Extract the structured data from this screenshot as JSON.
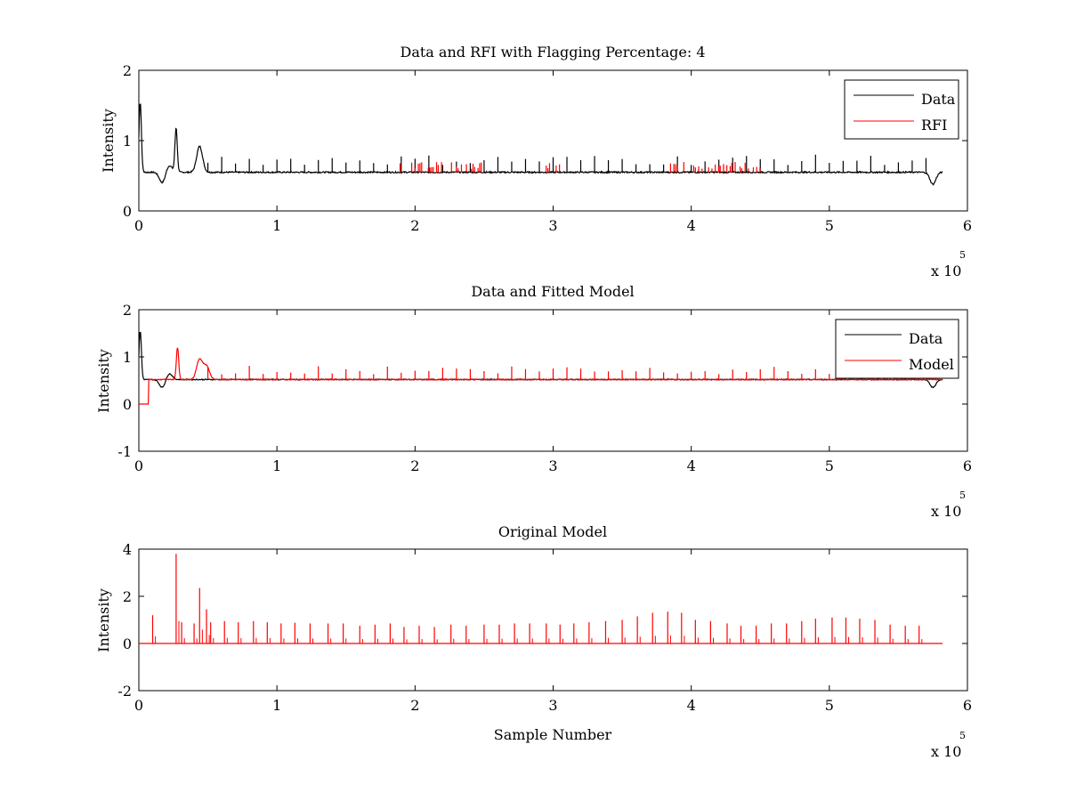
{
  "chart_data": [
    {
      "type": "line",
      "title": "Data and RFI with Flagging Percentage: 4",
      "xlabel": "",
      "ylabel": "Intensity",
      "xlim": [
        0,
        6
      ],
      "ylim": [
        0,
        2
      ],
      "x_ticks": [
        "0",
        "1",
        "2",
        "3",
        "4",
        "5",
        "6"
      ],
      "y_ticks": [
        "0",
        "1",
        "2"
      ],
      "x_multiplier": "x 10",
      "x_exponent": "5",
      "legend": {
        "position": "top-right",
        "entries": [
          {
            "name": "Data",
            "color": "#000000"
          },
          {
            "name": "RFI",
            "color": "#ff0000"
          }
        ]
      },
      "series": [
        {
          "name": "Data",
          "color": "#000000",
          "baseline": 0.55,
          "x_end": 5.82,
          "features": [
            {
              "x": 0.01,
              "y": 1.55
            },
            {
              "x": 0.17,
              "y": 0.4
            },
            {
              "x": 0.22,
              "y": 0.65
            },
            {
              "x": 0.27,
              "y": 1.18
            },
            {
              "x": 0.44,
              "y": 0.92
            },
            {
              "x": 5.75,
              "y": 0.38
            }
          ],
          "spike_spacing": 0.1,
          "spike_height": 0.7
        },
        {
          "name": "RFI",
          "color": "#ff0000",
          "segments": [
            [
              1.88,
              2.5
            ],
            [
              2.95,
              3.05
            ],
            [
              3.85,
              4.5
            ]
          ],
          "level": 0.6
        }
      ]
    },
    {
      "type": "line",
      "title": "Data and Fitted Model",
      "xlabel": "",
      "ylabel": "Intensity",
      "xlim": [
        0,
        6
      ],
      "ylim": [
        -1,
        2
      ],
      "x_ticks": [
        "0",
        "1",
        "2",
        "3",
        "4",
        "5",
        "6"
      ],
      "y_ticks": [
        "-1",
        "0",
        "1",
        "2"
      ],
      "x_multiplier": "x 10",
      "x_exponent": "5",
      "legend": {
        "position": "top-right",
        "entries": [
          {
            "name": "Data",
            "color": "#000000"
          },
          {
            "name": "Model",
            "color": "#ff0000"
          }
        ]
      },
      "series": [
        {
          "name": "Data",
          "color": "#000000",
          "baseline": 0.52,
          "x_end": 5.82,
          "features": [
            {
              "x": 0.01,
              "y": 1.55
            },
            {
              "x": 0.17,
              "y": 0.35
            },
            {
              "x": 0.22,
              "y": 0.65
            },
            {
              "x": 5.75,
              "y": 0.35
            }
          ]
        },
        {
          "name": "Model",
          "color": "#ff0000",
          "baseline": 0.52,
          "x_end": 5.82,
          "start_level": 0.0,
          "rise_at": 0.07,
          "features": [
            {
              "x": 0.28,
              "y": 1.2
            },
            {
              "x": 0.44,
              "y": 0.95
            },
            {
              "x": 0.49,
              "y": 0.8
            }
          ],
          "spike_spacing": 0.1,
          "spike_height": 0.72
        }
      ]
    },
    {
      "type": "line",
      "title": "Original Model",
      "xlabel": "Sample Number",
      "ylabel": "Intensity",
      "xlim": [
        0,
        6
      ],
      "ylim": [
        -2,
        4
      ],
      "x_ticks": [
        "0",
        "1",
        "2",
        "3",
        "4",
        "5",
        "6"
      ],
      "y_ticks": [
        "-2",
        "0",
        "2",
        "4"
      ],
      "x_multiplier": "x 10",
      "x_exponent": "5",
      "series": [
        {
          "name": "",
          "color": "#ff0000",
          "baseline": 0.0,
          "x_end": 5.82,
          "spikes": [
            [
              0.1,
              1.2
            ],
            [
              0.27,
              3.8
            ],
            [
              0.31,
              0.9
            ],
            [
              0.4,
              0.85
            ],
            [
              0.44,
              2.35
            ],
            [
              0.49,
              1.45
            ],
            [
              0.52,
              0.9
            ],
            [
              0.62,
              0.95
            ],
            [
              0.72,
              0.9
            ],
            [
              0.83,
              0.95
            ],
            [
              0.93,
              0.9
            ],
            [
              1.03,
              0.85
            ],
            [
              1.13,
              0.88
            ],
            [
              1.24,
              0.85
            ],
            [
              1.37,
              0.85
            ],
            [
              1.48,
              0.85
            ],
            [
              1.6,
              0.75
            ],
            [
              1.71,
              0.8
            ],
            [
              1.82,
              0.85
            ],
            [
              1.92,
              0.7
            ],
            [
              2.03,
              0.75
            ],
            [
              2.14,
              0.7
            ],
            [
              2.26,
              0.8
            ],
            [
              2.37,
              0.75
            ],
            [
              2.5,
              0.8
            ],
            [
              2.61,
              0.8
            ],
            [
              2.72,
              0.85
            ],
            [
              2.83,
              0.85
            ],
            [
              2.95,
              0.85
            ],
            [
              3.05,
              0.8
            ],
            [
              3.15,
              0.85
            ],
            [
              3.26,
              0.9
            ],
            [
              3.38,
              0.95
            ],
            [
              3.5,
              1.0
            ],
            [
              3.61,
              1.15
            ],
            [
              3.72,
              1.3
            ],
            [
              3.83,
              1.35
            ],
            [
              3.93,
              1.3
            ],
            [
              4.03,
              1.0
            ],
            [
              4.14,
              0.95
            ],
            [
              4.26,
              0.85
            ],
            [
              4.36,
              0.75
            ],
            [
              4.47,
              0.75
            ],
            [
              4.58,
              0.85
            ],
            [
              4.69,
              0.85
            ],
            [
              4.8,
              0.95
            ],
            [
              4.9,
              1.05
            ],
            [
              5.02,
              1.1
            ],
            [
              5.12,
              1.1
            ],
            [
              5.22,
              1.05
            ],
            [
              5.33,
              1.0
            ],
            [
              5.44,
              0.8
            ],
            [
              5.55,
              0.75
            ],
            [
              5.65,
              0.75
            ]
          ]
        }
      ]
    }
  ]
}
